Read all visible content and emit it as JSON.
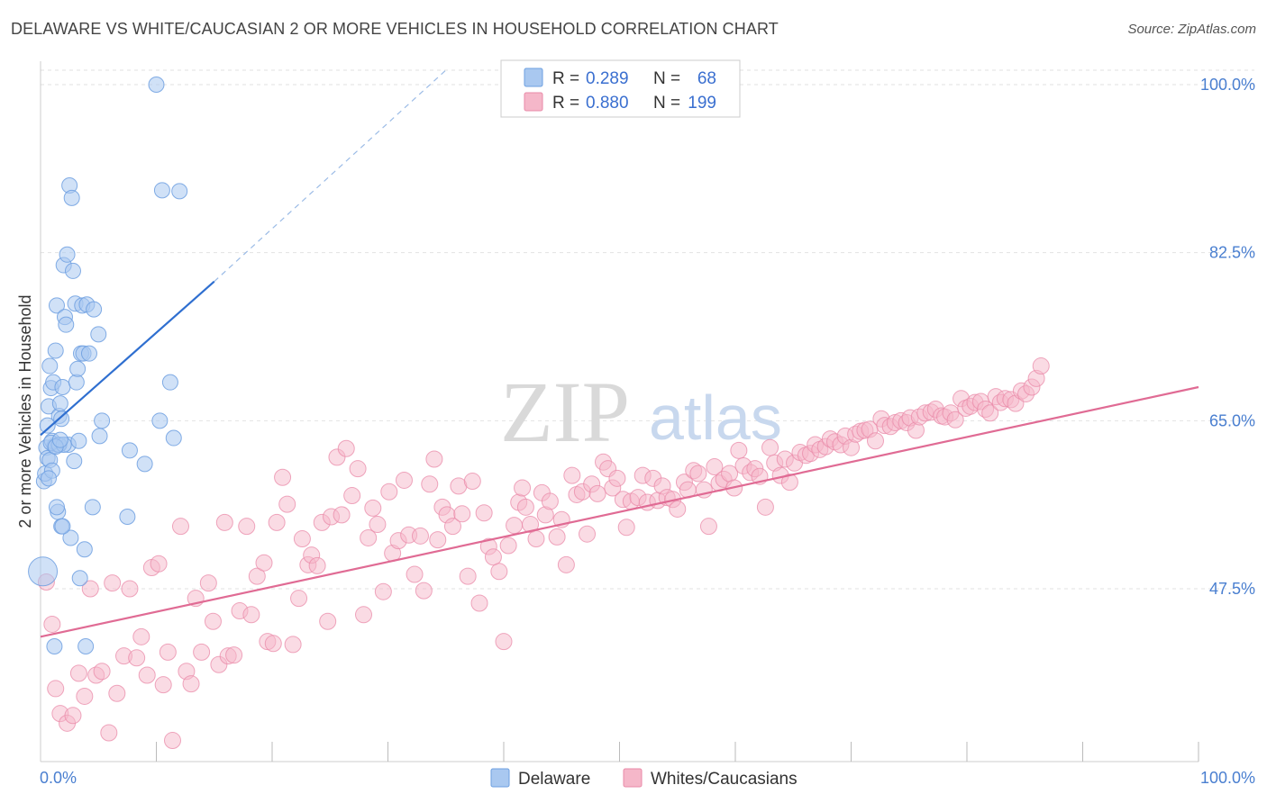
{
  "header": {
    "title": "DELAWARE VS WHITE/CAUCASIAN 2 OR MORE VEHICLES IN HOUSEHOLD CORRELATION CHART",
    "source": "Source: ZipAtlas.com"
  },
  "watermark": {
    "zip": "ZIP",
    "atlas": "atlas"
  },
  "colors": {
    "delaware_fill": "#a9c8f0",
    "delaware_stroke": "#6d9fe0",
    "delaware_line": "#2f6fd0",
    "white_fill": "#f5b7c9",
    "white_stroke": "#e98aa8",
    "white_line": "#e06b94",
    "tick_text": "#4a7fd0",
    "grid": "#e2e2e2"
  },
  "legend": {
    "rows": [
      {
        "r_label": "R =",
        "r_value": "0.289",
        "n_label": "N =",
        "n_value": "68"
      },
      {
        "r_label": "R =",
        "r_value": "0.880",
        "n_label": "N =",
        "n_value": "199"
      }
    ]
  },
  "chart_data": {
    "type": "scatter",
    "title": "DELAWARE VS WHITE/CAUCASIAN 2 OR MORE VEHICLES IN HOUSEHOLD CORRELATION CHART",
    "ylabel": "2 or more Vehicles in Household",
    "xlim": [
      0,
      100
    ],
    "ylim": [
      29.5,
      101.5
    ],
    "x_tick_labels": [
      "0.0%",
      "100.0%"
    ],
    "y_ticks": [
      47.5,
      65.0,
      82.5,
      100.0
    ],
    "y_tick_labels": [
      "47.5%",
      "65.0%",
      "82.5%",
      "100.0%"
    ],
    "grid": true,
    "legend_position": "top-center",
    "series": [
      {
        "name": "Delaware",
        "r": 0.289,
        "n": 68,
        "trend": {
          "x0": 0,
          "y0": 63.5,
          "x1": 15,
          "y1": 79.5,
          "dashed_to_x": 35,
          "dashed_to_y": 101.5
        },
        "points": [
          [
            0.2,
            49.3
          ],
          [
            0.3,
            58.7
          ],
          [
            0.4,
            59.5
          ],
          [
            0.5,
            62.2
          ],
          [
            0.6,
            61.1
          ],
          [
            0.6,
            64.5
          ],
          [
            0.7,
            66.5
          ],
          [
            0.8,
            60.9
          ],
          [
            0.8,
            70.7
          ],
          [
            0.9,
            68.4
          ],
          [
            1.0,
            59.8
          ],
          [
            1.1,
            69.0
          ],
          [
            1.2,
            62.4
          ],
          [
            1.3,
            72.3
          ],
          [
            1.4,
            77.0
          ],
          [
            1.5,
            62.5
          ],
          [
            1.6,
            65.5
          ],
          [
            1.7,
            66.8
          ],
          [
            1.8,
            54.0
          ],
          [
            1.9,
            68.5
          ],
          [
            2.0,
            81.2
          ],
          [
            2.1,
            75.8
          ],
          [
            2.2,
            75.0
          ],
          [
            2.3,
            82.3
          ],
          [
            2.4,
            62.5
          ],
          [
            2.5,
            89.5
          ],
          [
            2.6,
            52.8
          ],
          [
            2.7,
            88.2
          ],
          [
            2.8,
            80.6
          ],
          [
            2.9,
            60.8
          ],
          [
            3.0,
            77.2
          ],
          [
            3.1,
            69.0
          ],
          [
            3.2,
            70.4
          ],
          [
            3.3,
            62.9
          ],
          [
            3.4,
            48.6
          ],
          [
            3.5,
            72.0
          ],
          [
            3.6,
            77.0
          ],
          [
            3.7,
            72.0
          ],
          [
            3.8,
            51.6
          ],
          [
            3.9,
            41.5
          ],
          [
            4.0,
            77.1
          ],
          [
            4.2,
            72.0
          ],
          [
            4.5,
            56.0
          ],
          [
            4.6,
            76.6
          ],
          [
            5.0,
            74.0
          ],
          [
            5.1,
            63.4
          ],
          [
            5.3,
            65.0
          ],
          [
            7.5,
            55.0
          ],
          [
            7.7,
            61.9
          ],
          [
            9.0,
            60.5
          ],
          [
            10.0,
            100.0
          ],
          [
            10.3,
            65.0
          ],
          [
            10.5,
            89.0
          ],
          [
            11.2,
            69.0
          ],
          [
            11.5,
            63.2
          ],
          [
            12.0,
            88.9
          ],
          [
            1.0,
            62.9
          ],
          [
            1.5,
            55.5
          ],
          [
            1.2,
            41.5
          ],
          [
            0.9,
            62.7
          ],
          [
            1.4,
            56.0
          ],
          [
            1.6,
            62.5
          ],
          [
            1.8,
            65.2
          ],
          [
            2.0,
            62.5
          ],
          [
            1.3,
            62.3
          ],
          [
            1.7,
            63.0
          ],
          [
            1.9,
            54.0
          ],
          [
            0.7,
            59.0
          ]
        ]
      },
      {
        "name": "Whites/Caucasians",
        "r": 0.88,
        "n": 199,
        "trend": {
          "x0": 0,
          "y0": 42.5,
          "x1": 100,
          "y1": 68.5
        },
        "points": [
          [
            0.5,
            48.2
          ],
          [
            1.0,
            43.8
          ],
          [
            1.3,
            37.1
          ],
          [
            1.7,
            34.5
          ],
          [
            2.3,
            33.5
          ],
          [
            2.8,
            34.3
          ],
          [
            3.3,
            38.7
          ],
          [
            3.8,
            36.3
          ],
          [
            4.3,
            47.5
          ],
          [
            4.8,
            38.5
          ],
          [
            5.3,
            38.9
          ],
          [
            5.9,
            32.5
          ],
          [
            6.2,
            48.1
          ],
          [
            6.6,
            36.6
          ],
          [
            7.2,
            40.5
          ],
          [
            7.7,
            47.5
          ],
          [
            8.3,
            40.3
          ],
          [
            8.7,
            42.5
          ],
          [
            9.2,
            38.5
          ],
          [
            9.6,
            49.7
          ],
          [
            10.2,
            50.1
          ],
          [
            10.6,
            37.5
          ],
          [
            11.0,
            40.9
          ],
          [
            11.4,
            31.7
          ],
          [
            12.1,
            54.0
          ],
          [
            12.6,
            38.9
          ],
          [
            13.0,
            37.6
          ],
          [
            13.4,
            46.5
          ],
          [
            13.9,
            40.9
          ],
          [
            14.5,
            48.1
          ],
          [
            14.9,
            44.1
          ],
          [
            15.4,
            39.6
          ],
          [
            15.9,
            54.4
          ],
          [
            16.2,
            40.5
          ],
          [
            16.7,
            40.6
          ],
          [
            17.2,
            45.2
          ],
          [
            17.8,
            54.0
          ],
          [
            18.2,
            44.8
          ],
          [
            18.7,
            48.8
          ],
          [
            19.3,
            50.2
          ],
          [
            19.6,
            42.0
          ],
          [
            20.1,
            41.8
          ],
          [
            20.4,
            54.4
          ],
          [
            20.9,
            59.1
          ],
          [
            21.3,
            56.3
          ],
          [
            21.8,
            41.7
          ],
          [
            22.3,
            46.5
          ],
          [
            22.6,
            52.7
          ],
          [
            23.1,
            50.0
          ],
          [
            23.4,
            51.0
          ],
          [
            23.9,
            49.9
          ],
          [
            24.3,
            54.4
          ],
          [
            24.8,
            44.1
          ],
          [
            25.1,
            55.0
          ],
          [
            25.6,
            61.2
          ],
          [
            26.0,
            55.2
          ],
          [
            26.4,
            62.1
          ],
          [
            26.9,
            57.2
          ],
          [
            27.4,
            60.0
          ],
          [
            27.9,
            44.8
          ],
          [
            28.3,
            52.8
          ],
          [
            28.7,
            55.9
          ],
          [
            29.1,
            54.2
          ],
          [
            29.6,
            47.2
          ],
          [
            30.1,
            57.6
          ],
          [
            30.4,
            51.2
          ],
          [
            30.9,
            52.5
          ],
          [
            31.4,
            58.8
          ],
          [
            31.8,
            53.1
          ],
          [
            32.3,
            49.0
          ],
          [
            32.8,
            53.0
          ],
          [
            33.1,
            47.3
          ],
          [
            33.6,
            58.4
          ],
          [
            34.0,
            61.0
          ],
          [
            34.3,
            52.6
          ],
          [
            34.7,
            56.0
          ],
          [
            35.1,
            55.2
          ],
          [
            35.6,
            54.0
          ],
          [
            36.1,
            58.2
          ],
          [
            36.4,
            55.3
          ],
          [
            36.9,
            48.8
          ],
          [
            37.3,
            58.7
          ],
          [
            37.9,
            46.0
          ],
          [
            38.3,
            55.4
          ],
          [
            38.7,
            51.9
          ],
          [
            39.1,
            50.8
          ],
          [
            39.6,
            49.3
          ],
          [
            40.0,
            42.0
          ],
          [
            40.4,
            52.0
          ],
          [
            40.9,
            54.1
          ],
          [
            41.3,
            56.5
          ],
          [
            41.6,
            58.0
          ],
          [
            41.9,
            56.0
          ],
          [
            42.3,
            54.2
          ],
          [
            42.8,
            52.7
          ],
          [
            43.3,
            57.5
          ],
          [
            43.6,
            55.2
          ],
          [
            44.0,
            56.6
          ],
          [
            44.6,
            52.9
          ],
          [
            45.0,
            54.7
          ],
          [
            45.4,
            50.0
          ],
          [
            45.9,
            59.3
          ],
          [
            46.3,
            57.3
          ],
          [
            46.8,
            57.6
          ],
          [
            47.2,
            53.2
          ],
          [
            47.6,
            58.4
          ],
          [
            48.1,
            57.4
          ],
          [
            48.6,
            60.7
          ],
          [
            49.0,
            60.0
          ],
          [
            49.4,
            58.0
          ],
          [
            49.8,
            59.0
          ],
          [
            50.3,
            56.8
          ],
          [
            50.6,
            53.9
          ],
          [
            51.0,
            56.6
          ],
          [
            51.6,
            57.0
          ],
          [
            52.0,
            59.3
          ],
          [
            52.4,
            56.5
          ],
          [
            52.9,
            59.0
          ],
          [
            53.3,
            56.7
          ],
          [
            53.7,
            58.2
          ],
          [
            54.1,
            57.0
          ],
          [
            54.6,
            56.8
          ],
          [
            55.0,
            55.8
          ],
          [
            55.6,
            58.6
          ],
          [
            55.9,
            57.8
          ],
          [
            56.4,
            59.8
          ],
          [
            56.8,
            59.5
          ],
          [
            57.3,
            57.8
          ],
          [
            57.7,
            54.0
          ],
          [
            58.2,
            60.2
          ],
          [
            58.6,
            58.5
          ],
          [
            59.0,
            58.9
          ],
          [
            59.5,
            59.5
          ],
          [
            59.9,
            58.0
          ],
          [
            60.3,
            61.9
          ],
          [
            60.7,
            60.3
          ],
          [
            61.3,
            59.6
          ],
          [
            61.7,
            60.0
          ],
          [
            62.1,
            59.2
          ],
          [
            62.6,
            56.0
          ],
          [
            63.0,
            62.2
          ],
          [
            63.4,
            60.6
          ],
          [
            63.9,
            59.3
          ],
          [
            64.3,
            61.0
          ],
          [
            64.7,
            58.6
          ],
          [
            65.1,
            60.6
          ],
          [
            65.6,
            61.7
          ],
          [
            66.1,
            61.4
          ],
          [
            66.5,
            61.6
          ],
          [
            66.9,
            62.5
          ],
          [
            67.3,
            62.0
          ],
          [
            67.8,
            62.3
          ],
          [
            68.2,
            63.1
          ],
          [
            68.6,
            62.8
          ],
          [
            69.1,
            62.5
          ],
          [
            69.5,
            63.4
          ],
          [
            70.0,
            62.2
          ],
          [
            70.4,
            63.6
          ],
          [
            70.8,
            63.9
          ],
          [
            71.2,
            64.0
          ],
          [
            71.6,
            64.1
          ],
          [
            72.1,
            62.9
          ],
          [
            72.6,
            65.2
          ],
          [
            72.9,
            64.5
          ],
          [
            73.4,
            64.4
          ],
          [
            73.8,
            64.8
          ],
          [
            74.3,
            65.0
          ],
          [
            74.8,
            64.8
          ],
          [
            75.1,
            65.3
          ],
          [
            75.6,
            64.0
          ],
          [
            75.9,
            65.4
          ],
          [
            76.4,
            65.8
          ],
          [
            76.9,
            65.9
          ],
          [
            77.3,
            66.2
          ],
          [
            77.8,
            65.5
          ],
          [
            78.1,
            65.4
          ],
          [
            78.6,
            65.8
          ],
          [
            79.0,
            65.1
          ],
          [
            79.5,
            67.3
          ],
          [
            79.9,
            66.3
          ],
          [
            80.3,
            66.5
          ],
          [
            80.7,
            66.9
          ],
          [
            81.2,
            67.0
          ],
          [
            81.6,
            66.2
          ],
          [
            82.0,
            65.8
          ],
          [
            82.5,
            67.5
          ],
          [
            82.9,
            66.9
          ],
          [
            83.3,
            67.3
          ],
          [
            83.8,
            67.2
          ],
          [
            84.2,
            66.8
          ],
          [
            84.7,
            68.1
          ],
          [
            85.1,
            67.8
          ],
          [
            85.6,
            68.5
          ],
          [
            86.0,
            69.4
          ],
          [
            86.4,
            70.7
          ]
        ]
      }
    ]
  },
  "bottom_legend": {
    "items": [
      {
        "label": "Delaware"
      },
      {
        "label": "Whites/Caucasians"
      }
    ]
  }
}
